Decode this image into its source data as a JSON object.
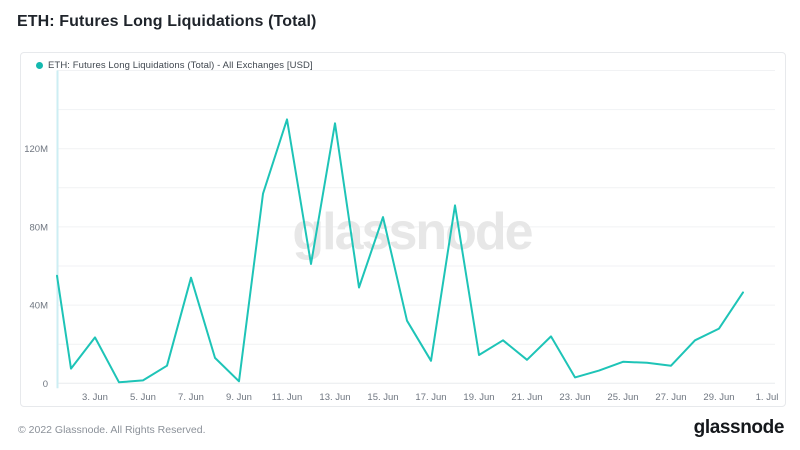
{
  "page": {
    "title": "ETH: Futures Long Liquidations (Total)"
  },
  "legend": {
    "label": "ETH: Futures Long Liquidations (Total) - All Exchanges [USD]"
  },
  "watermark": "glassnode",
  "footer": {
    "copyright": "© 2022 Glassnode. All Rights Reserved.",
    "brand": "glassnode"
  },
  "colors": {
    "line": "#1ec4b7",
    "legend_dot": "#14b9af",
    "axis_line": "#cdeef3",
    "grid": "#f1f2f4",
    "grid_zero": "#e8ebee",
    "tick_text": "#6f7680",
    "watermark": "#e7e7e7"
  },
  "chart_data": {
    "type": "line",
    "title": "ETH: Futures Long Liquidations (Total)",
    "series_name": "ETH: Futures Long Liquidations (Total) - All Exchanges [USD]",
    "unit": "USD (millions)",
    "x": [
      "1. Jun",
      "2. Jun",
      "3. Jun",
      "4. Jun",
      "5. Jun",
      "6. Jun",
      "7. Jun",
      "8. Jun",
      "9. Jun",
      "10. Jun",
      "11. Jun",
      "12. Jun",
      "13. Jun",
      "14. Jun",
      "15. Jun",
      "16. Jun",
      "17. Jun",
      "18. Jun",
      "19. Jun",
      "20. Jun",
      "21. Jun",
      "22. Jun",
      "23. Jun",
      "24. Jun",
      "25. Jun",
      "26. Jun",
      "27. Jun",
      "28. Jun",
      "29. Jun",
      "30. Jun"
    ],
    "values": [
      55,
      7.5,
      23.5,
      0.5,
      1.5,
      9,
      54,
      13,
      1,
      97,
      135,
      61,
      133,
      49,
      85,
      32,
      11.5,
      91,
      14.5,
      22,
      12,
      24,
      3,
      6.5,
      11,
      10.5,
      9,
      22,
      28,
      46.5
    ],
    "ylim": [
      0,
      160
    ],
    "grid_step": 20,
    "grid": true,
    "legend_position": "top-left",
    "y_ticks": [
      {
        "value": 0,
        "label": "0"
      },
      {
        "value": 40,
        "label": "40M"
      },
      {
        "value": 80,
        "label": "80M"
      },
      {
        "value": 120,
        "label": "120M"
      }
    ],
    "x_ticks": [
      {
        "day": 3,
        "label": "3. Jun"
      },
      {
        "day": 5,
        "label": "5. Jun"
      },
      {
        "day": 7,
        "label": "7. Jun"
      },
      {
        "day": 9,
        "label": "9. Jun"
      },
      {
        "day": 11,
        "label": "11. Jun"
      },
      {
        "day": 13,
        "label": "13. Jun"
      },
      {
        "day": 15,
        "label": "15. Jun"
      },
      {
        "day": 17,
        "label": "17. Jun"
      },
      {
        "day": 19,
        "label": "19. Jun"
      },
      {
        "day": 21,
        "label": "21. Jun"
      },
      {
        "day": 23,
        "label": "23. Jun"
      },
      {
        "day": 25,
        "label": "25. Jun"
      },
      {
        "day": 27,
        "label": "27. Jun"
      },
      {
        "day": 29,
        "label": "29. Jun"
      },
      {
        "day": 31,
        "label": "1. Jul"
      }
    ]
  }
}
